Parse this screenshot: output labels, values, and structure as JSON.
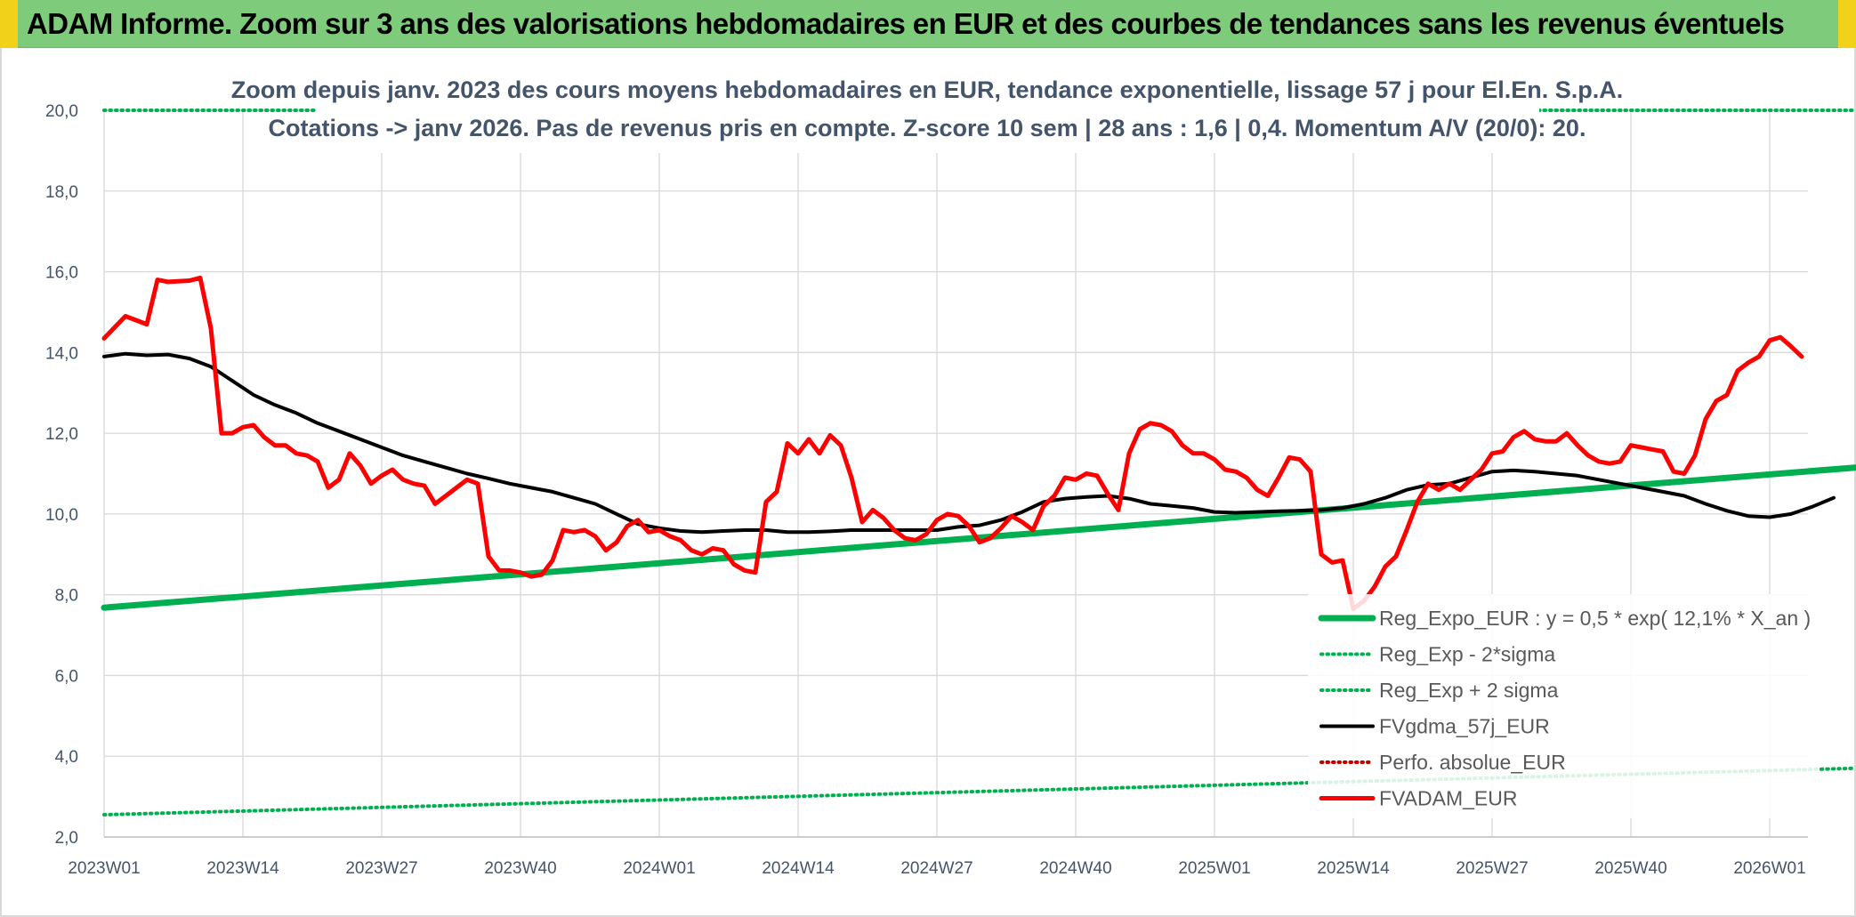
{
  "header": {
    "title": "ADAM Informe. Zoom sur 3 ans des valorisations hebdomadaires en EUR et des courbes de tendances sans les revenus éventuels"
  },
  "chart_data": {
    "type": "line",
    "subtitle_line1": "Zoom depuis janv. 2023 des cours moyens hebdomadaires en EUR, tendance exponentielle, lissage 57 j pour El.En. S.p.A.",
    "subtitle_line2": "Cotations -> janv 2026. Pas de revenus pris en compte. Z-score 10 sem | 28 ans : 1,6 | 0,4. Momentum A/V (20/0): 20.",
    "xlabel": "",
    "ylabel": "",
    "ylim": [
      2.0,
      20.0
    ],
    "y_ticks": [
      "2,0",
      "4,0",
      "6,0",
      "8,0",
      "10,0",
      "12,0",
      "14,0",
      "16,0",
      "18,0",
      "20,0"
    ],
    "x_ticks": [
      "2023W01",
      "2023W14",
      "2023W27",
      "2023W40",
      "2024W01",
      "2024W14",
      "2024W27",
      "2024W40",
      "2025W01",
      "2025W14",
      "2025W27",
      "2025W40",
      "2026W01"
    ],
    "grid": true,
    "legend_position": "bottom-right",
    "series": [
      {
        "name": "Reg_Expo_EUR : y = 0,5 * exp( 12,1% *  X_an )",
        "color": "#00b050",
        "style": "thick",
        "points": [
          [
            0,
            7.68
          ],
          [
            164,
            11.15
          ]
        ]
      },
      {
        "name": "Reg_Exp - 2*sigma",
        "color": "#00b050",
        "style": "dotted",
        "points": [
          [
            0,
            2.55
          ],
          [
            164,
            3.7
          ]
        ]
      },
      {
        "name": "Reg_Exp + 2 sigma",
        "color": "#00b050",
        "style": "dotted",
        "points": [
          [
            0,
            20.0
          ],
          [
            164,
            20.0
          ]
        ]
      },
      {
        "name": "FVgdma_57j_EUR",
        "color": "#000000",
        "style": "solid",
        "points": [
          [
            0,
            13.9
          ],
          [
            2,
            13.97
          ],
          [
            4,
            13.93
          ],
          [
            6,
            13.95
          ],
          [
            8,
            13.85
          ],
          [
            10,
            13.65
          ],
          [
            12,
            13.3
          ],
          [
            14,
            12.95
          ],
          [
            16,
            12.7
          ],
          [
            18,
            12.5
          ],
          [
            20,
            12.25
          ],
          [
            22,
            12.05
          ],
          [
            24,
            11.85
          ],
          [
            26,
            11.65
          ],
          [
            28,
            11.45
          ],
          [
            30,
            11.3
          ],
          [
            32,
            11.15
          ],
          [
            34,
            11.0
          ],
          [
            36,
            10.88
          ],
          [
            38,
            10.75
          ],
          [
            40,
            10.65
          ],
          [
            42,
            10.55
          ],
          [
            44,
            10.4
          ],
          [
            46,
            10.25
          ],
          [
            48,
            10.0
          ],
          [
            50,
            9.75
          ],
          [
            52,
            9.65
          ],
          [
            54,
            9.58
          ],
          [
            56,
            9.55
          ],
          [
            58,
            9.58
          ],
          [
            60,
            9.6
          ],
          [
            62,
            9.6
          ],
          [
            64,
            9.55
          ],
          [
            66,
            9.55
          ],
          [
            68,
            9.57
          ],
          [
            70,
            9.6
          ],
          [
            72,
            9.6
          ],
          [
            74,
            9.6
          ],
          [
            76,
            9.6
          ],
          [
            78,
            9.6
          ],
          [
            80,
            9.68
          ],
          [
            82,
            9.72
          ],
          [
            84,
            9.85
          ],
          [
            86,
            10.05
          ],
          [
            88,
            10.3
          ],
          [
            90,
            10.38
          ],
          [
            92,
            10.42
          ],
          [
            94,
            10.45
          ],
          [
            96,
            10.38
          ],
          [
            98,
            10.25
          ],
          [
            100,
            10.2
          ],
          [
            102,
            10.15
          ],
          [
            104,
            10.05
          ],
          [
            106,
            10.03
          ],
          [
            108,
            10.05
          ],
          [
            110,
            10.07
          ],
          [
            112,
            10.08
          ],
          [
            114,
            10.1
          ],
          [
            116,
            10.15
          ],
          [
            118,
            10.25
          ],
          [
            120,
            10.4
          ],
          [
            122,
            10.6
          ],
          [
            124,
            10.72
          ],
          [
            126,
            10.75
          ],
          [
            128,
            10.9
          ],
          [
            130,
            11.05
          ],
          [
            132,
            11.08
          ],
          [
            134,
            11.05
          ],
          [
            136,
            11.0
          ],
          [
            138,
            10.95
          ],
          [
            140,
            10.85
          ],
          [
            142,
            10.75
          ],
          [
            144,
            10.65
          ],
          [
            146,
            10.55
          ],
          [
            148,
            10.45
          ],
          [
            150,
            10.25
          ],
          [
            152,
            10.08
          ],
          [
            154,
            9.95
          ],
          [
            156,
            9.92
          ],
          [
            158,
            10.0
          ],
          [
            160,
            10.18
          ],
          [
            162,
            10.4
          ]
        ]
      },
      {
        "name": "Perfo. absolue_EUR",
        "color": "#c00000",
        "style": "dotted",
        "points": []
      },
      {
        "name": "FVADAM_EUR",
        "color": "#ff0000",
        "style": "thick",
        "points": [
          [
            0,
            14.35
          ],
          [
            2,
            14.9
          ],
          [
            4,
            14.7
          ],
          [
            5,
            15.8
          ],
          [
            6,
            15.75
          ],
          [
            8,
            15.78
          ],
          [
            9,
            15.85
          ],
          [
            10,
            14.6
          ],
          [
            11,
            12.0
          ],
          [
            12,
            12.0
          ],
          [
            13,
            12.15
          ],
          [
            14,
            12.2
          ],
          [
            15,
            11.9
          ],
          [
            16,
            11.7
          ],
          [
            17,
            11.7
          ],
          [
            18,
            11.5
          ],
          [
            19,
            11.45
          ],
          [
            20,
            11.3
          ],
          [
            21,
            10.65
          ],
          [
            22,
            10.85
          ],
          [
            23,
            11.5
          ],
          [
            24,
            11.2
          ],
          [
            25,
            10.75
          ],
          [
            26,
            10.95
          ],
          [
            27,
            11.1
          ],
          [
            28,
            10.85
          ],
          [
            29,
            10.75
          ],
          [
            30,
            10.7
          ],
          [
            31,
            10.25
          ],
          [
            32,
            10.45
          ],
          [
            33,
            10.65
          ],
          [
            34,
            10.85
          ],
          [
            35,
            10.75
          ],
          [
            36,
            8.95
          ],
          [
            37,
            8.6
          ],
          [
            38,
            8.6
          ],
          [
            39,
            8.55
          ],
          [
            40,
            8.45
          ],
          [
            41,
            8.5
          ],
          [
            42,
            8.85
          ],
          [
            43,
            9.6
          ],
          [
            44,
            9.55
          ],
          [
            45,
            9.6
          ],
          [
            46,
            9.45
          ],
          [
            47,
            9.1
          ],
          [
            48,
            9.3
          ],
          [
            49,
            9.7
          ],
          [
            50,
            9.85
          ],
          [
            51,
            9.55
          ],
          [
            52,
            9.6
          ],
          [
            53,
            9.45
          ],
          [
            54,
            9.35
          ],
          [
            55,
            9.1
          ],
          [
            56,
            9.0
          ],
          [
            57,
            9.15
          ],
          [
            58,
            9.1
          ],
          [
            59,
            8.75
          ],
          [
            60,
            8.6
          ],
          [
            61,
            8.55
          ],
          [
            62,
            10.3
          ],
          [
            63,
            10.55
          ],
          [
            64,
            11.75
          ],
          [
            65,
            11.5
          ],
          [
            66,
            11.85
          ],
          [
            67,
            11.5
          ],
          [
            68,
            11.95
          ],
          [
            69,
            11.7
          ],
          [
            70,
            10.9
          ],
          [
            71,
            9.8
          ],
          [
            72,
            10.1
          ],
          [
            73,
            9.9
          ],
          [
            74,
            9.6
          ],
          [
            75,
            9.4
          ],
          [
            76,
            9.35
          ],
          [
            77,
            9.5
          ],
          [
            78,
            9.85
          ],
          [
            79,
            10.0
          ],
          [
            80,
            9.95
          ],
          [
            81,
            9.7
          ],
          [
            82,
            9.3
          ],
          [
            83,
            9.4
          ],
          [
            84,
            9.65
          ],
          [
            85,
            9.95
          ],
          [
            86,
            9.8
          ],
          [
            87,
            9.6
          ],
          [
            88,
            10.2
          ],
          [
            89,
            10.45
          ],
          [
            90,
            10.9
          ],
          [
            91,
            10.85
          ],
          [
            92,
            11.0
          ],
          [
            93,
            10.95
          ],
          [
            94,
            10.5
          ],
          [
            95,
            10.1
          ],
          [
            96,
            11.5
          ],
          [
            97,
            12.1
          ],
          [
            98,
            12.25
          ],
          [
            99,
            12.2
          ],
          [
            100,
            12.05
          ],
          [
            101,
            11.7
          ],
          [
            102,
            11.5
          ],
          [
            103,
            11.5
          ],
          [
            104,
            11.35
          ],
          [
            105,
            11.1
          ],
          [
            106,
            11.05
          ],
          [
            107,
            10.9
          ],
          [
            108,
            10.6
          ],
          [
            109,
            10.45
          ],
          [
            110,
            10.9
          ],
          [
            111,
            11.4
          ],
          [
            112,
            11.35
          ],
          [
            113,
            11.05
          ],
          [
            114,
            9.0
          ],
          [
            115,
            8.8
          ],
          [
            116,
            8.85
          ],
          [
            117,
            7.65
          ],
          [
            118,
            7.85
          ],
          [
            119,
            8.2
          ],
          [
            120,
            8.7
          ],
          [
            121,
            8.95
          ],
          [
            122,
            9.6
          ],
          [
            123,
            10.3
          ],
          [
            124,
            10.75
          ],
          [
            125,
            10.6
          ],
          [
            126,
            10.75
          ],
          [
            127,
            10.6
          ],
          [
            128,
            10.85
          ],
          [
            129,
            11.1
          ],
          [
            130,
            11.5
          ],
          [
            131,
            11.55
          ],
          [
            132,
            11.9
          ],
          [
            133,
            12.05
          ],
          [
            134,
            11.85
          ],
          [
            135,
            11.8
          ],
          [
            136,
            11.8
          ],
          [
            137,
            12.0
          ],
          [
            138,
            11.7
          ],
          [
            139,
            11.45
          ],
          [
            140,
            11.3
          ],
          [
            141,
            11.25
          ],
          [
            142,
            11.3
          ],
          [
            143,
            11.7
          ],
          [
            144,
            11.65
          ],
          [
            145,
            11.6
          ],
          [
            146,
            11.55
          ],
          [
            147,
            11.05
          ],
          [
            148,
            11.0
          ],
          [
            149,
            11.45
          ],
          [
            150,
            12.35
          ],
          [
            151,
            12.8
          ],
          [
            152,
            12.95
          ],
          [
            153,
            13.55
          ],
          [
            154,
            13.75
          ],
          [
            155,
            13.9
          ],
          [
            156,
            14.3
          ],
          [
            157,
            14.38
          ],
          [
            158,
            14.15
          ],
          [
            159,
            13.9
          ]
        ]
      }
    ]
  }
}
